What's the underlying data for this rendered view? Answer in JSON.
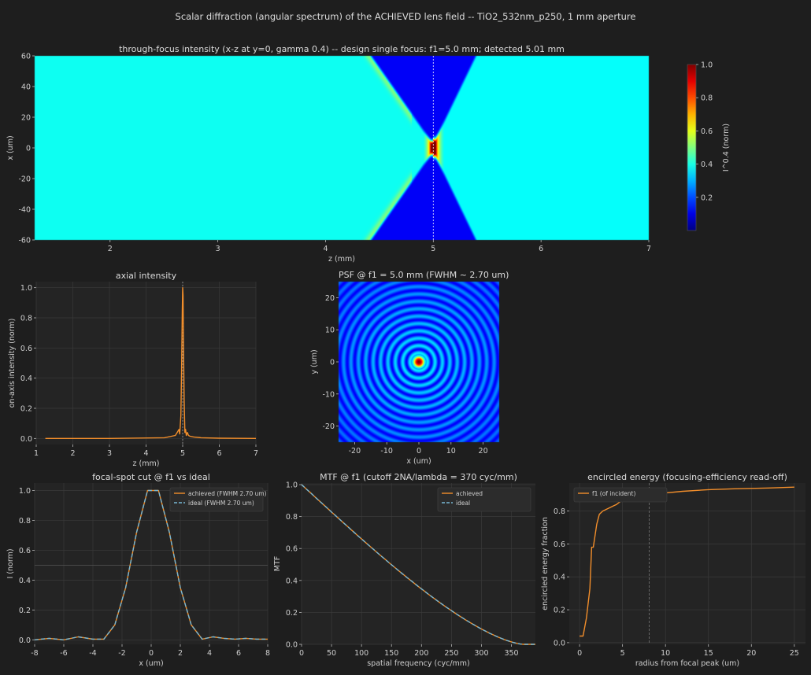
{
  "figure": {
    "suptitle": "Scalar diffraction (angular spectrum) of the ACHIEVED lens field -- TiO2_532nm_p250, 1 mm aperture"
  },
  "colors": {
    "background": "#1e1e1e",
    "axes_bg": "#242424",
    "grid": "#3a3a3a",
    "achieved": "#f28e2b",
    "ideal": "#76b7d4",
    "marker_line": "#a0a0a0"
  },
  "chart_data": [
    {
      "id": "through_focus",
      "type": "heatmap",
      "title": "through-focus intensity (x-z at y=0, gamma 0.4) -- design single focus: f1=5.0 mm; detected 5.01 mm",
      "xlabel": "z (mm)",
      "ylabel": "x (um)",
      "xlim": [
        1.3,
        7
      ],
      "ylim": [
        -60,
        60
      ],
      "xticks": [
        2,
        3,
        4,
        5,
        6,
        7
      ],
      "yticks": [
        -60,
        -40,
        -20,
        0,
        20,
        40,
        60
      ],
      "focus_z": 5.0,
      "colormap": "jet",
      "colorbar": {
        "label": "I^0.4 (norm)",
        "ticks": [
          0.2,
          0.4,
          0.6,
          0.8,
          1.0
        ],
        "range": [
          0,
          1
        ]
      }
    },
    {
      "id": "axial",
      "type": "line",
      "title": "axial intensity",
      "xlabel": "z (mm)",
      "ylabel": "on-axis intensity (norm)",
      "xlim": [
        1,
        7
      ],
      "ylim": [
        -0.04,
        1.04
      ],
      "xticks": [
        1,
        2,
        3,
        4,
        5,
        6,
        7
      ],
      "yticks": [
        0.0,
        0.2,
        0.4,
        0.6,
        0.8,
        1.0
      ],
      "grid": true,
      "marker_x": 5.0,
      "series": [
        {
          "x": [
            1.25,
            3.0,
            4.5,
            4.8,
            4.85,
            4.9,
            4.92,
            4.95,
            4.97,
            4.99,
            5.0,
            5.01,
            5.02,
            5.04,
            5.06,
            5.08,
            5.1,
            5.13,
            5.16,
            5.2,
            5.3,
            5.5,
            6.0,
            7.0
          ],
          "y": [
            0.0,
            0.0,
            0.005,
            0.02,
            0.04,
            0.06,
            0.03,
            0.15,
            0.45,
            0.85,
            1.0,
            0.95,
            0.7,
            0.25,
            0.04,
            0.06,
            0.02,
            0.04,
            0.02,
            0.015,
            0.01,
            0.005,
            0.002,
            0.0
          ]
        }
      ]
    },
    {
      "id": "psf",
      "type": "heatmap",
      "title": "PSF @ f1 = 5.0 mm (FWHM ~ 2.70 um)",
      "xlabel": "x (um)",
      "ylabel": "y (um)",
      "xlim": [
        -25,
        25
      ],
      "ylim": [
        -25,
        25
      ],
      "xticks": [
        -20,
        -10,
        0,
        10,
        20
      ],
      "yticks": [
        -20,
        -10,
        0,
        10,
        20
      ],
      "colormap": "jet"
    },
    {
      "id": "focal_cut",
      "type": "line",
      "title": "focal-spot cut @ f1 vs ideal",
      "xlabel": "x (um)",
      "ylabel": "I (norm)",
      "xlim": [
        -8,
        8
      ],
      "ylim": [
        -0.03,
        1.05
      ],
      "xticks": [
        -8,
        -6,
        -4,
        -2,
        0,
        2,
        4,
        6,
        8
      ],
      "yticks": [
        0.0,
        0.2,
        0.4,
        0.6,
        0.8,
        1.0
      ],
      "grid": true,
      "half_max_line": 0.5,
      "legend": "top-right",
      "series": [
        {
          "name": "achieved (FWHM 2.70 um)",
          "style": "solid",
          "x": [
            -8,
            -7,
            -6,
            -5,
            -4,
            -3.25,
            -2.5,
            -1.75,
            -1,
            -0.25,
            0.5,
            1.25,
            2,
            2.75,
            3.5,
            4.25,
            5,
            5.75,
            6.5,
            7.25,
            8
          ],
          "y": [
            0.0,
            0.01,
            0.0,
            0.02,
            0.005,
            0.005,
            0.1,
            0.35,
            0.72,
            1.0,
            1.0,
            0.72,
            0.35,
            0.1,
            0.005,
            0.02,
            0.01,
            0.005,
            0.01,
            0.005,
            0.005
          ]
        },
        {
          "name": "ideal (FWHM 2.70 um)",
          "style": "dashed",
          "x": [
            -8,
            -7,
            -6,
            -5,
            -4,
            -3.25,
            -2.5,
            -1.75,
            -1,
            -0.25,
            0.5,
            1.25,
            2,
            2.75,
            3.5,
            4.25,
            5,
            5.75,
            6.5,
            7.25,
            8
          ],
          "y": [
            0.0,
            0.01,
            0.0,
            0.02,
            0.005,
            0.005,
            0.1,
            0.35,
            0.72,
            1.0,
            1.0,
            0.72,
            0.35,
            0.1,
            0.005,
            0.02,
            0.01,
            0.005,
            0.01,
            0.005,
            0.005
          ]
        }
      ]
    },
    {
      "id": "mtf",
      "type": "line",
      "title": "MTF @ f1 (cutoff 2NA/lambda = 370 cyc/mm)",
      "xlabel": "spatial frequency (cyc/mm)",
      "ylabel": "MTF",
      "xlim": [
        0,
        390
      ],
      "ylim": [
        0,
        1.01
      ],
      "xticks": [
        0,
        50,
        100,
        150,
        200,
        250,
        300,
        350
      ],
      "yticks": [
        0.0,
        0.2,
        0.4,
        0.6,
        0.8,
        1.0
      ],
      "grid": true,
      "legend": "top-right",
      "cutoff": 370,
      "series": [
        {
          "name": "achieved",
          "style": "solid",
          "model": "diffraction_limited_mtf"
        },
        {
          "name": "ideal",
          "style": "dashed",
          "model": "diffraction_limited_mtf"
        }
      ]
    },
    {
      "id": "encircled_energy",
      "type": "line",
      "title": "encircled energy (focusing-efficiency read-off)",
      "xlabel": "radius from focal peak (um)",
      "ylabel": "encircled energy fraction",
      "xlim": [
        -1.2,
        26.3
      ],
      "ylim": [
        -0.01,
        0.97
      ],
      "xticks": [
        0,
        5,
        10,
        15,
        20,
        25
      ],
      "yticks": [
        0.0,
        0.2,
        0.4,
        0.6,
        0.8
      ],
      "grid": true,
      "legend": "top-left",
      "marker_x": 8.1,
      "series": [
        {
          "name": "f1 (of incident)",
          "style": "solid",
          "x": [
            0,
            0.4,
            0.8,
            1.2,
            1.4,
            1.6,
            2.0,
            2.3,
            2.7,
            3.1,
            3.5,
            3.9,
            4.3,
            4.8,
            5.5,
            6.5,
            7.5,
            8.5,
            10,
            12,
            15,
            18,
            22,
            25
          ],
          "y": [
            0.04,
            0.04,
            0.15,
            0.33,
            0.58,
            0.58,
            0.72,
            0.78,
            0.8,
            0.81,
            0.82,
            0.83,
            0.84,
            0.86,
            0.87,
            0.88,
            0.89,
            0.9,
            0.91,
            0.92,
            0.93,
            0.935,
            0.94,
            0.945
          ]
        }
      ]
    }
  ]
}
